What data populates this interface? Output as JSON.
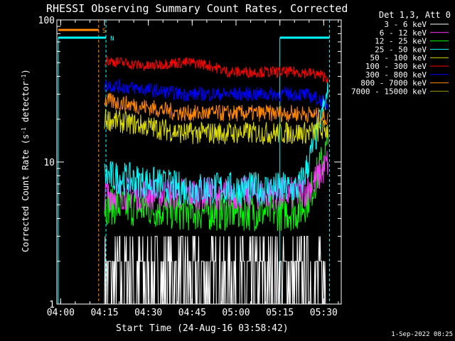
{
  "chart_data": {
    "type": "line",
    "title": "RHESSI Observing Summary Count Rates, Corrected",
    "xlabel": "Start Time (24-Aug-16 03:58:42)",
    "ylabel_main": "Corrected Count Rate (s",
    "ylabel_sup1": "-1",
    "ylabel_mid": " detector",
    "ylabel_sup2": "-1",
    "ylabel_end": ")",
    "yscale": "log",
    "ylim": [
      1,
      100
    ],
    "xlim": [
      "03:58:42",
      "05:36:00"
    ],
    "x_ticks": [
      "04:00",
      "04:15",
      "04:30",
      "04:45",
      "05:00",
      "05:15",
      "05:30"
    ],
    "y_ticks": [
      "1",
      "10",
      "100"
    ],
    "legend_header": "Det 1,3, Att 0",
    "timestamp": "1-Sep-2022 08:25",
    "markers": {
      "S": "S",
      "N": "N"
    },
    "series": [
      {
        "name": "3 - 6 keV",
        "color": "#ffffff"
      },
      {
        "name": "6 - 12 keV",
        "color": "#ff33ff"
      },
      {
        "name": "12 - 25 keV",
        "color": "#00ff00"
      },
      {
        "name": "25 - 50 keV",
        "color": "#00ffff"
      },
      {
        "name": "50 - 100 keV",
        "color": "#dddd00"
      },
      {
        "name": "100 - 300 keV",
        "color": "#ff0000"
      },
      {
        "name": "300 - 800 keV",
        "color": "#0000ff"
      },
      {
        "name": "800 - 7000 keV",
        "color": "#ff8800"
      },
      {
        "name": "7000 - 15000 keV",
        "color": "#999900"
      }
    ],
    "levels": {
      "100 - 300 keV": {
        "start": 52,
        "mid": 43,
        "peak": 50,
        "end": 39
      },
      "300 - 800 keV": {
        "start": 35,
        "mid": 30,
        "end": 25
      },
      "800 - 7000 keV": {
        "start": 27,
        "mid": 22,
        "end": 20
      },
      "50 - 100 keV": {
        "start": 20,
        "mid": 16,
        "end": 17
      },
      "25 - 50 keV": {
        "start": 8,
        "mid": 6.5,
        "end": 30
      },
      "12 - 25 keV": {
        "start": 5,
        "mid": 4.5,
        "end": 13
      },
      "6 - 12 keV": {
        "start": 6,
        "mid": 6,
        "end": 10
      },
      "3 - 6 keV": {
        "start": 1.5,
        "mid": 2,
        "end": 1.5
      }
    },
    "grid": false,
    "legend_position": "outside-right"
  }
}
